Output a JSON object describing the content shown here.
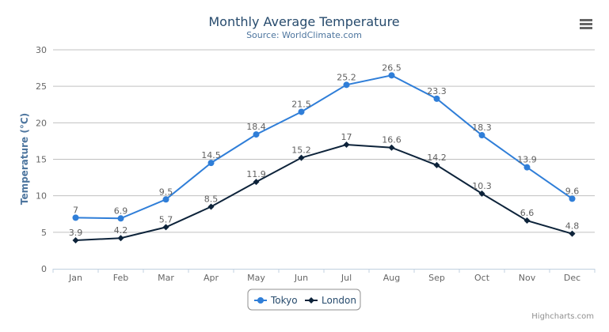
{
  "chart_data": {
    "type": "line",
    "title": "Monthly Average Temperature",
    "subtitle": "Source: WorldClimate.com",
    "xlabel": "",
    "ylabel": "Temperature (°C)",
    "categories": [
      "Jan",
      "Feb",
      "Mar",
      "Apr",
      "May",
      "Jun",
      "Jul",
      "Aug",
      "Sep",
      "Oct",
      "Nov",
      "Dec"
    ],
    "ylim": [
      0,
      30
    ],
    "yticks": [
      0,
      5,
      10,
      15,
      20,
      25,
      30
    ],
    "grid": true,
    "legend": "bottom-center",
    "data_labels": true,
    "series": [
      {
        "name": "Tokyo",
        "color": "#2f7ed8",
        "marker": "circle",
        "values": [
          7.0,
          6.9,
          9.5,
          14.5,
          18.4,
          21.5,
          25.2,
          26.5,
          23.3,
          18.3,
          13.9,
          9.6
        ]
      },
      {
        "name": "London",
        "color": "#0d233a",
        "marker": "diamond",
        "values": [
          3.9,
          4.2,
          5.7,
          8.5,
          11.9,
          15.2,
          17.0,
          16.6,
          14.2,
          10.3,
          6.6,
          4.8
        ]
      }
    ]
  },
  "credits": "Highcharts.com",
  "menu_icon": "hamburger-menu-icon"
}
